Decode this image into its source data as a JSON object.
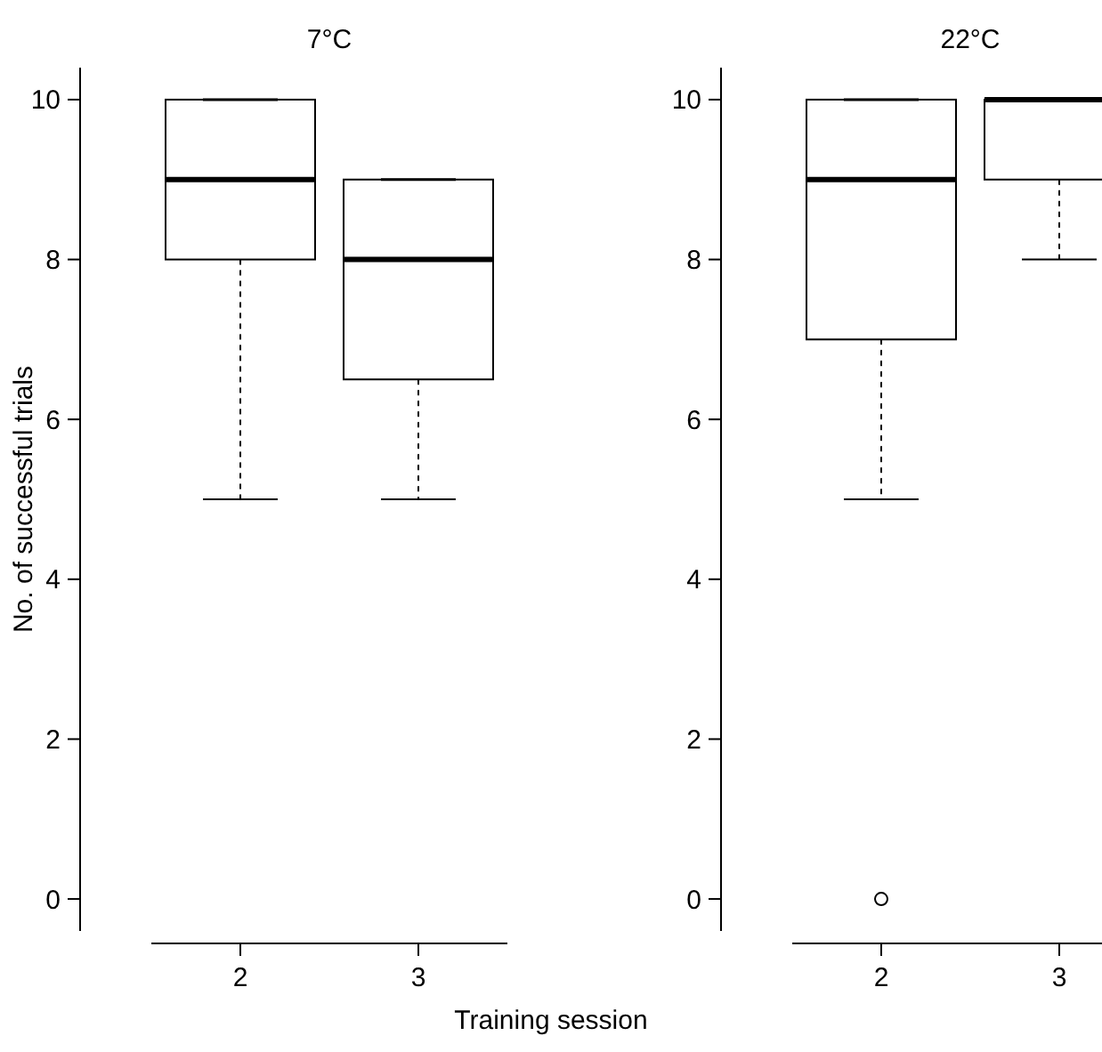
{
  "chart_data": [
    {
      "type": "box",
      "title": "7°C",
      "ylabel": "No. of successful trials",
      "xlabel": "Training session",
      "categories": [
        "2",
        "3"
      ],
      "boxes": [
        {
          "low": 5,
          "q1": 8,
          "median": 9,
          "q3": 10,
          "high": 10
        },
        {
          "low": 5,
          "q1": 6.5,
          "median": 8,
          "q3": 9,
          "high": 9
        }
      ],
      "ylim": [
        -0.4,
        10.4
      ],
      "yticks": [
        0,
        2,
        4,
        6,
        8,
        10
      ]
    },
    {
      "type": "box",
      "title": "22°C",
      "categories": [
        "2",
        "3"
      ],
      "boxes": [
        {
          "low": 5,
          "q1": 7,
          "median": 9,
          "q3": 10,
          "high": 10,
          "outliers": [
            0
          ]
        },
        {
          "low": 8,
          "q1": 9,
          "median": 10,
          "q3": 10,
          "high": 10
        }
      ],
      "ylim": [
        -0.4,
        10.4
      ],
      "yticks": [
        0,
        2,
        4,
        6,
        8,
        10
      ]
    }
  ]
}
